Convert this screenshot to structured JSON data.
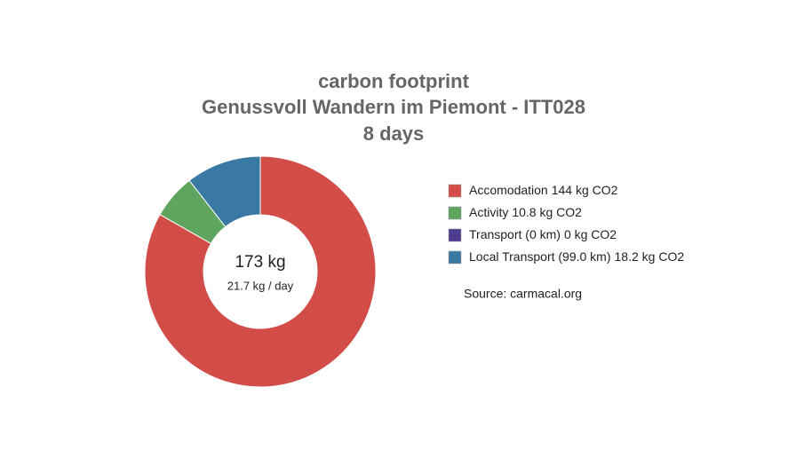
{
  "chart_data": {
    "type": "pie",
    "title": [
      "carbon footprint",
      "Genussvoll Wandern im Piemont - ITT028",
      "8 days"
    ],
    "categories": [
      "Accomodation",
      "Activity",
      "Transport (0 km)",
      "Local Transport (99.0 km)"
    ],
    "values": [
      144,
      10.8,
      0,
      18.2
    ],
    "value_labels": [
      "144 kg CO2",
      "10.8 kg CO2",
      "0 kg CO2",
      "18.2 kg CO2"
    ],
    "colors": [
      "#d24d48",
      "#5fa55f",
      "#4e3d8f",
      "#3b79a5"
    ],
    "center_label": "173 kg",
    "center_sublabel": "21.7 kg / day",
    "source": "Source: carmacal.org"
  }
}
